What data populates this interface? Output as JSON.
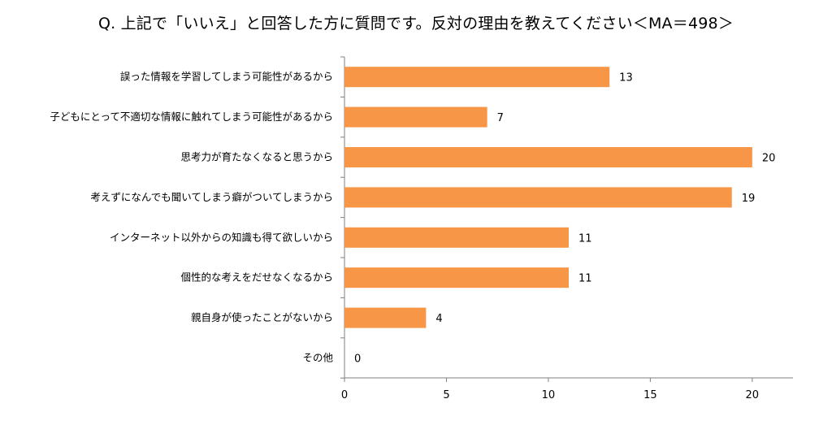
{
  "title": "Q. 上記で「いいえ」と回答した方に質問です。反対の理由を教えてください＜MA＝498＞",
  "chart_data": {
    "type": "bar",
    "orientation": "horizontal",
    "title": "Q. 上記で「いいえ」と回答した方に質問です。反対の理由を教えてください＜MA＝498＞",
    "categories": [
      "誤った情報を学習してしまう可能性があるから",
      "子どもにとって不適切な情報に触れてしまう可能性があるから",
      "思考力が育たなくなると思うから",
      "考えずになんでも聞いてしまう癖がついてしまうから",
      "インターネット以外からの知識も得て欲しいから",
      "個性的な考えをだせなくなるから",
      "親自身が使ったことがないから",
      "その他"
    ],
    "values": [
      13,
      7,
      20,
      19,
      11,
      11,
      4,
      0
    ],
    "xlim": [
      0,
      22
    ],
    "xticks": [
      0,
      5,
      10,
      15,
      20
    ],
    "bar_color": "#f79646",
    "grid": false,
    "data_labels": true
  }
}
